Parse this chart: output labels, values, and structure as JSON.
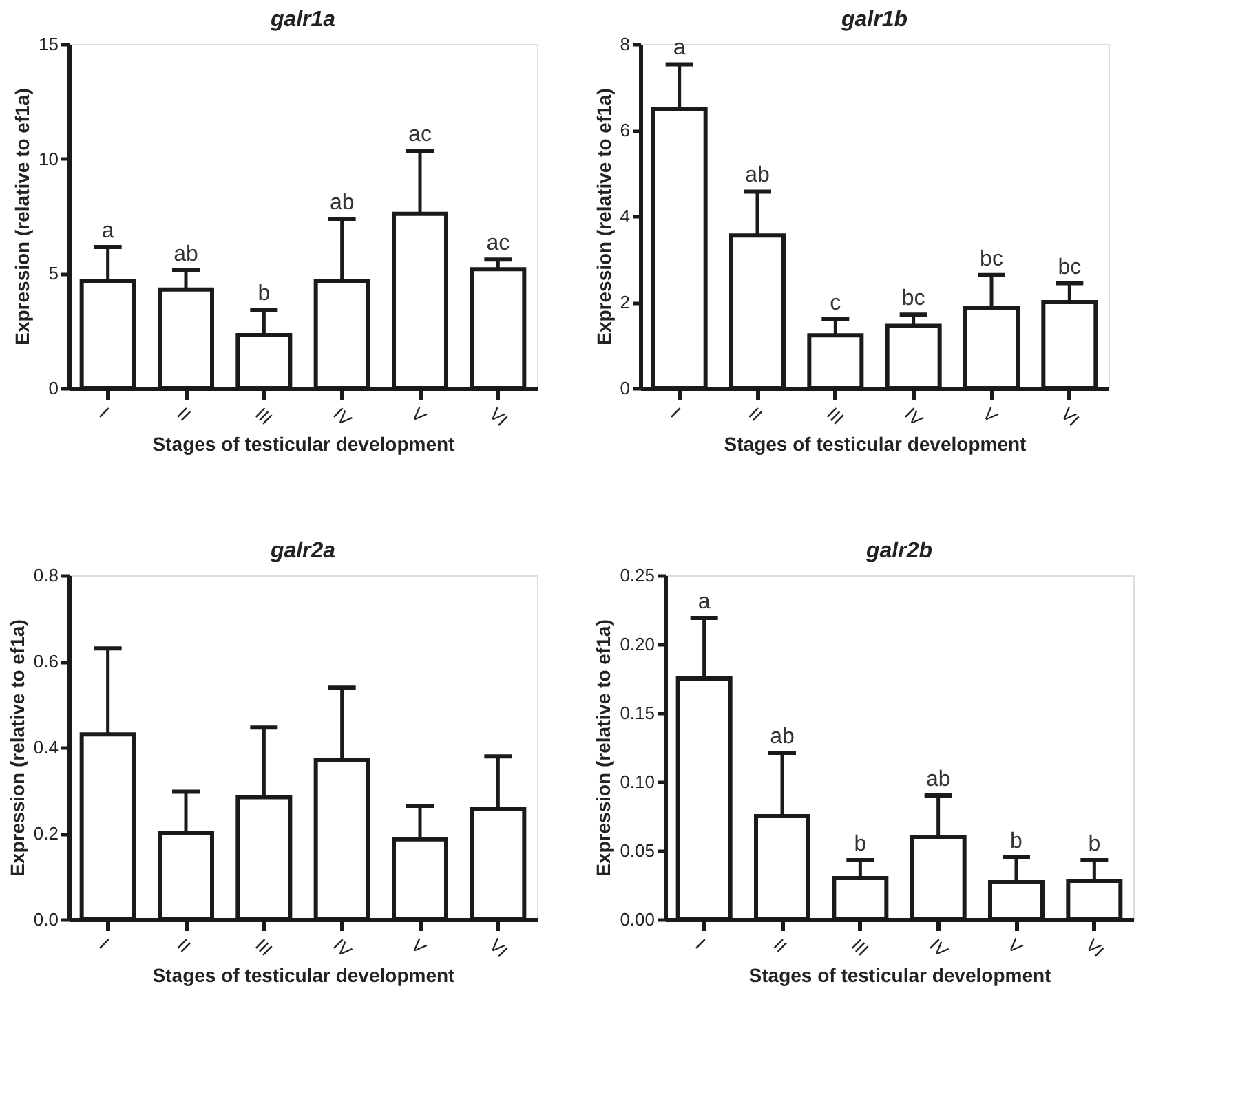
{
  "chart_data": [
    {
      "type": "bar",
      "title": "galr1a",
      "xlabel": "Stages of testicular development",
      "ylabel": "Expression (relative to ef1a)",
      "categories": [
        "I",
        "II",
        "III",
        "IV",
        "V",
        "VI"
      ],
      "series": [
        {
          "color": "#ffffff",
          "values": [
            4.68,
            4.3,
            2.31,
            4.68,
            7.6,
            5.18
          ],
          "errors": [
            1.47,
            0.84,
            1.11,
            2.7,
            2.74,
            0.42
          ]
        }
      ],
      "ylim": [
        0,
        15
      ],
      "yticks": [
        0,
        5,
        10,
        15
      ],
      "grid": false,
      "annotations": [
        {
          "text": "a",
          "x": "I",
          "y": 6.15
        },
        {
          "text": "ab",
          "x": "II",
          "y": 5.14
        },
        {
          "text": "b",
          "x": "III",
          "y": 3.42
        },
        {
          "text": "ab",
          "x": "IV",
          "y": 7.38
        },
        {
          "text": "ac",
          "x": "V",
          "y": 10.34
        },
        {
          "text": "ac",
          "x": "VI",
          "y": 5.6
        }
      ]
    },
    {
      "type": "bar",
      "title": "galr1b",
      "xlabel": "Stages of testicular development",
      "ylabel": "Expression (relative to ef1a)",
      "categories": [
        "I",
        "II",
        "III",
        "IV",
        "V",
        "VI"
      ],
      "series": [
        {
          "color": "#ffffff",
          "values": [
            6.49,
            3.55,
            1.23,
            1.45,
            1.87,
            2.0
          ],
          "errors": [
            1.04,
            1.02,
            0.37,
            0.26,
            0.76,
            0.44
          ]
        }
      ],
      "ylim": [
        0,
        8
      ],
      "yticks": [
        0,
        2,
        4,
        6,
        8
      ],
      "grid": false,
      "annotations": [
        {
          "text": "a",
          "x": "I",
          "y": 7.53
        },
        {
          "text": "ab",
          "x": "II",
          "y": 4.57
        },
        {
          "text": "c",
          "x": "III",
          "y": 1.6
        },
        {
          "text": "bc",
          "x": "IV",
          "y": 1.71
        },
        {
          "text": "bc",
          "x": "V",
          "y": 2.63
        },
        {
          "text": "bc",
          "x": "VI",
          "y": 2.44
        }
      ]
    },
    {
      "type": "bar",
      "title": "galr2a",
      "xlabel": "Stages of testicular development",
      "ylabel": "Expression (relative to ef1a)",
      "categories": [
        "I",
        "II",
        "III",
        "IV",
        "V",
        "VI"
      ],
      "series": [
        {
          "color": "#ffffff",
          "values": [
            0.43,
            0.2,
            0.284,
            0.37,
            0.186,
            0.256
          ],
          "errors": [
            0.2,
            0.097,
            0.162,
            0.169,
            0.078,
            0.123
          ]
        }
      ],
      "ylim": [
        0,
        0.8
      ],
      "yticks": [
        {
          "value": 0,
          "label": "0.0"
        },
        0.2,
        0.4,
        0.6,
        0.8
      ],
      "grid": false
    },
    {
      "type": "bar",
      "title": "galr2b",
      "xlabel": "Stages of testicular development",
      "ylabel": "Expression (relative to ef1a)",
      "categories": [
        "I",
        "II",
        "III",
        "IV",
        "V",
        "VI"
      ],
      "series": [
        {
          "color": "#ffffff",
          "values": [
            0.175,
            0.075,
            0.03,
            0.06,
            0.027,
            0.028
          ],
          "errors": [
            0.044,
            0.046,
            0.013,
            0.03,
            0.018,
            0.015
          ]
        }
      ],
      "ylim": [
        0,
        0.25
      ],
      "yticks": [
        {
          "value": 0,
          "label": "0.00"
        },
        0.05,
        {
          "value": 0.1,
          "label": "0.10"
        },
        0.15,
        {
          "value": 0.2,
          "label": "0.20"
        },
        0.25
      ],
      "grid": false,
      "annotations": [
        {
          "text": "a",
          "x": "I",
          "y": 0.219
        },
        {
          "text": "ab",
          "x": "II",
          "y": 0.121
        },
        {
          "text": "b",
          "x": "III",
          "y": 0.043
        },
        {
          "text": "ab",
          "x": "IV",
          "y": 0.09
        },
        {
          "text": "b",
          "x": "V",
          "y": 0.045
        },
        {
          "text": "b",
          "x": "VI",
          "y": 0.043
        }
      ]
    }
  ]
}
